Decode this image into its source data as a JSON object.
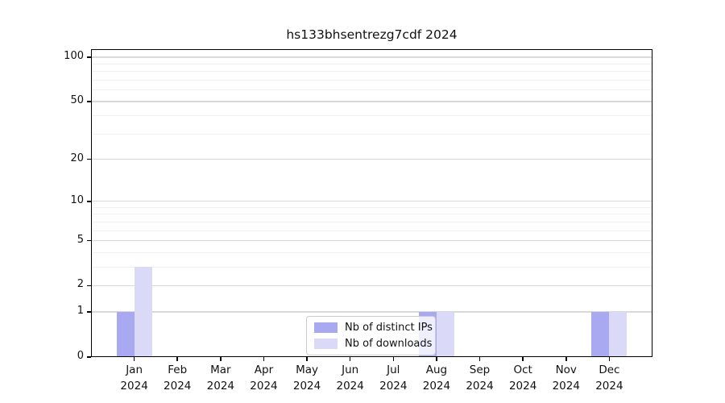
{
  "chart_data": {
    "type": "bar",
    "title": "hs133bhsentrezg7cdf 2024",
    "categories": [
      "Jan",
      "Feb",
      "Mar",
      "Apr",
      "May",
      "Jun",
      "Jul",
      "Aug",
      "Sep",
      "Oct",
      "Nov",
      "Dec"
    ],
    "x_tick_year": "2024",
    "series": [
      {
        "name": "Nb of distinct IPs",
        "color": "#a9a9f2",
        "values": [
          1,
          0,
          0,
          0,
          0,
          0,
          0,
          1,
          0,
          0,
          0,
          1
        ]
      },
      {
        "name": "Nb of downloads",
        "color": "#dadaf8",
        "values": [
          3,
          0,
          0,
          0,
          0,
          0,
          0,
          1,
          0,
          0,
          0,
          1
        ]
      }
    ],
    "y_scale": "log1p",
    "y_major_ticks": [
      0,
      1,
      2,
      5,
      10,
      20,
      50,
      100
    ],
    "y_minor_ticks": [
      3,
      4,
      6,
      7,
      8,
      9,
      30,
      40,
      60,
      70,
      80,
      90
    ],
    "ylim": [
      0,
      110
    ],
    "grid": "on",
    "legend_position": "lower center",
    "colors": {
      "major_grid": "#d9d9d9",
      "minor_grid": "#f0f0f0",
      "spine": "#000000",
      "text": "#111111",
      "background": "#ffffff"
    }
  }
}
